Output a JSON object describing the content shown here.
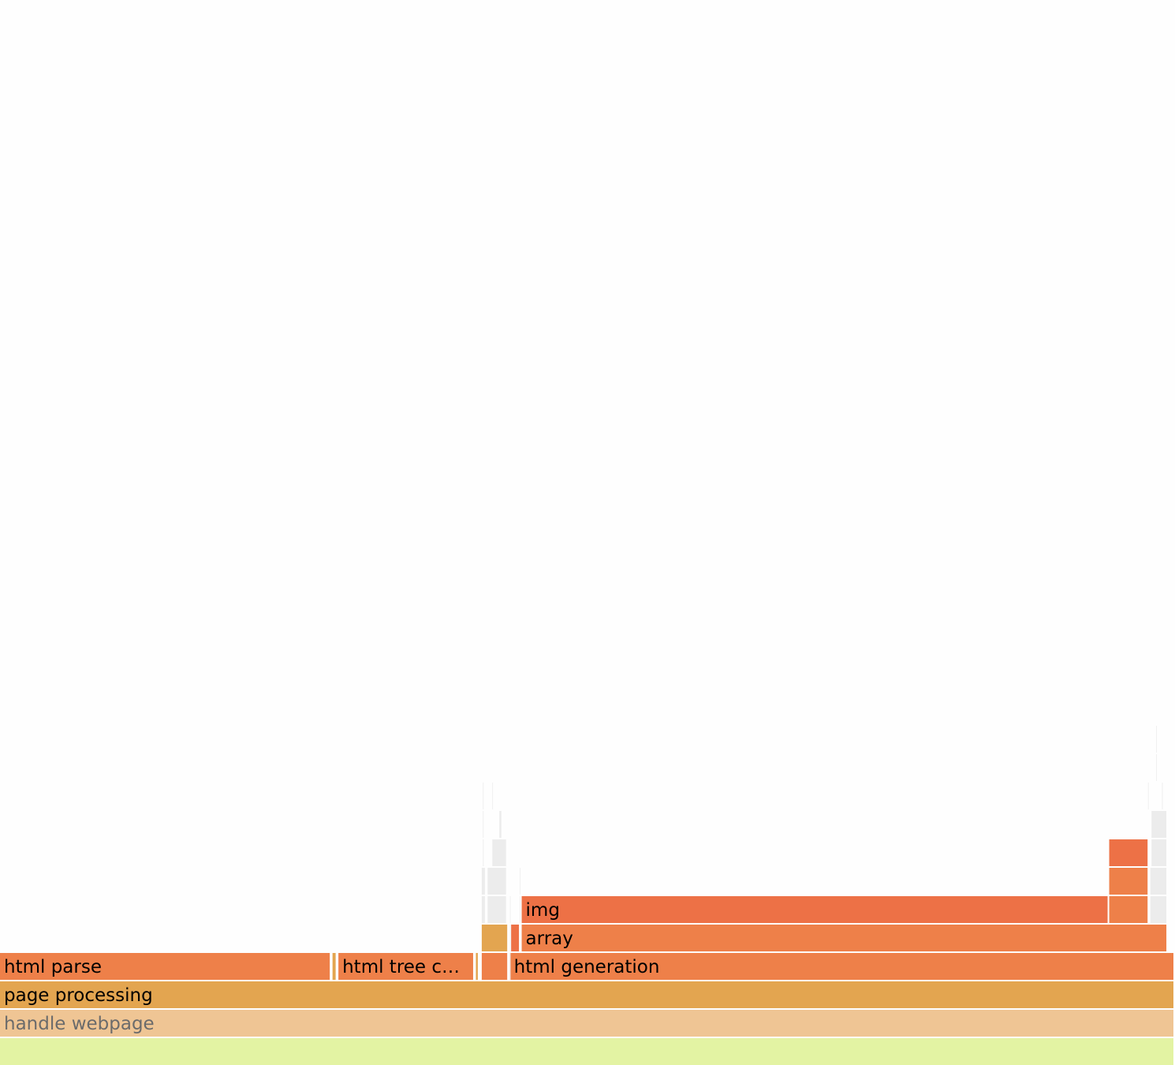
{
  "colors": {
    "background": "#fefefe",
    "ruby_orange": "#ed7146",
    "ruby_orange_light": "#ee8049",
    "ruby_amber": "#e3a550",
    "root_light": "#efc594",
    "root_green": "#e3f3a3",
    "tiny_grey": "#ececec"
  },
  "chart_data": {
    "type": "flamegraph",
    "orientation": "bottom-up",
    "title": "",
    "xlabel": "",
    "ylabel": "",
    "frames": [
      {
        "name": "",
        "depth": 0,
        "start": 0,
        "end": 100,
        "color": "root_green"
      },
      {
        "name": "handle webpage",
        "depth": 1,
        "start": 0,
        "end": 100,
        "color": "root_light",
        "muted": true
      },
      {
        "name": "page processing",
        "depth": 2,
        "start": 0,
        "end": 100,
        "color": "ruby_amber"
      },
      {
        "name": "html parse",
        "depth": 3,
        "start": 0,
        "end": 28.2,
        "color": "ruby_orange_light"
      },
      {
        "name": "",
        "depth": 3,
        "start": 28.3,
        "end": 28.7,
        "color": "ruby_amber"
      },
      {
        "name": "html tree c…",
        "depth": 3,
        "start": 28.8,
        "end": 40.4,
        "color": "ruby_orange_light"
      },
      {
        "name": "",
        "depth": 3,
        "start": 40.5,
        "end": 40.8,
        "color": "ruby_amber"
      },
      {
        "name": "",
        "depth": 3,
        "start": 41.0,
        "end": 43.3,
        "color": "ruby_orange_light"
      },
      {
        "name": "html generation",
        "depth": 3,
        "start": 43.4,
        "end": 100,
        "color": "ruby_orange_light"
      },
      {
        "name": "",
        "depth": 4,
        "start": 41.0,
        "end": 43.3,
        "color": "ruby_amber"
      },
      {
        "name": "",
        "depth": 4,
        "start": 43.5,
        "end": 44.3,
        "color": "ruby_orange"
      },
      {
        "name": "array",
        "depth": 4,
        "start": 44.4,
        "end": 99.4,
        "color": "ruby_orange_light"
      },
      {
        "name": "img",
        "depth": 5,
        "start": 44.4,
        "end": 94.4,
        "color": "ruby_orange"
      },
      {
        "name": "",
        "depth": 5,
        "start": 94.4,
        "end": 97.8,
        "color": "ruby_orange_light"
      },
      {
        "name": "",
        "depth": 6,
        "start": 94.4,
        "end": 97.8,
        "color": "ruby_orange_light"
      },
      {
        "name": "",
        "depth": 7,
        "start": 94.4,
        "end": 97.8,
        "color": "ruby_orange"
      },
      {
        "name": "",
        "depth": 5,
        "start": 41.0,
        "end": 41.4,
        "color": "tiny_grey"
      },
      {
        "name": "",
        "depth": 6,
        "start": 41.0,
        "end": 41.4,
        "color": "tiny_grey"
      },
      {
        "name": "",
        "depth": 7,
        "start": 41.1,
        "end": 41.3,
        "color": "tiny_grey"
      },
      {
        "name": "",
        "depth": 8,
        "start": 41.1,
        "end": 41.2,
        "color": "tiny_grey"
      },
      {
        "name": "",
        "depth": 9,
        "start": 41.1,
        "end": 41.15,
        "color": "tiny_grey"
      },
      {
        "name": "",
        "depth": 5,
        "start": 41.5,
        "end": 43.2,
        "color": "tiny_grey"
      },
      {
        "name": "",
        "depth": 6,
        "start": 41.5,
        "end": 43.2,
        "color": "tiny_grey"
      },
      {
        "name": "",
        "depth": 7,
        "start": 41.9,
        "end": 43.2,
        "color": "tiny_grey"
      },
      {
        "name": "",
        "depth": 8,
        "start": 42.5,
        "end": 42.8,
        "color": "tiny_grey"
      },
      {
        "name": "",
        "depth": 9,
        "start": 41.9,
        "end": 42.0,
        "color": "tiny_grey"
      },
      {
        "name": "",
        "depth": 3,
        "start": 43.4,
        "end": 43.45,
        "color": "tiny_grey"
      },
      {
        "name": "",
        "depth": 4,
        "start": 43.4,
        "end": 43.45,
        "color": "tiny_grey"
      },
      {
        "name": "",
        "depth": 5,
        "start": 43.4,
        "end": 43.45,
        "color": "tiny_grey"
      },
      {
        "name": "",
        "depth": 5,
        "start": 44.25,
        "end": 44.35,
        "color": "tiny_grey"
      },
      {
        "name": "",
        "depth": 6,
        "start": 44.25,
        "end": 44.35,
        "color": "tiny_grey"
      },
      {
        "name": "",
        "depth": 5,
        "start": 97.9,
        "end": 99.4,
        "color": "tiny_grey"
      },
      {
        "name": "",
        "depth": 6,
        "start": 97.9,
        "end": 99.4,
        "color": "tiny_grey"
      },
      {
        "name": "",
        "depth": 7,
        "start": 98.0,
        "end": 99.4,
        "color": "tiny_grey"
      },
      {
        "name": "",
        "depth": 8,
        "start": 98.0,
        "end": 99.4,
        "color": "tiny_grey"
      },
      {
        "name": "",
        "depth": 9,
        "start": 97.7,
        "end": 97.8,
        "color": "tiny_grey"
      },
      {
        "name": "",
        "depth": 9,
        "start": 98.9,
        "end": 99.0,
        "color": "tiny_grey"
      },
      {
        "name": "",
        "depth": 10,
        "start": 98.4,
        "end": 98.5,
        "color": "tiny_grey"
      },
      {
        "name": "",
        "depth": 11,
        "start": 98.4,
        "end": 98.5,
        "color": "tiny_grey"
      }
    ]
  }
}
